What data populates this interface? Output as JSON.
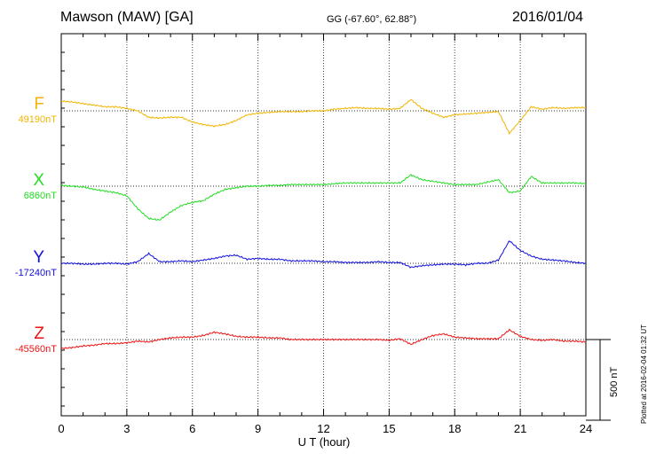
{
  "header": {
    "station": "Mawson (MAW)  [GA]",
    "coords": "GG (-67.60°,  62.88°)",
    "date": "2016/01/04"
  },
  "colors": {
    "F": "#f2b400",
    "X": "#22dd22",
    "Y": "#1010dd",
    "Z": "#ee1111"
  },
  "chart_data": {
    "type": "line",
    "xlabel": "U T (hour)",
    "xlim": [
      0,
      24
    ],
    "xticks": [
      0,
      3,
      6,
      9,
      12,
      15,
      18,
      21,
      24
    ],
    "xtick_labels": [
      "0",
      "3",
      "6",
      "9",
      "12",
      "15",
      "18",
      "21",
      "24"
    ],
    "grid": "vertical dotted at 3-hour intervals; dotted baseline per channel",
    "y_unit": "nT",
    "y_units_per_channel_span": 500,
    "scale_label": "500 nT",
    "plotted_note": "Plotted at 2016-02-04 01:32 UT",
    "x": [
      0,
      0.5,
      1,
      1.5,
      2,
      2.5,
      3,
      3.5,
      4,
      4.5,
      5,
      5.5,
      6,
      6.5,
      7,
      7.5,
      8,
      8.5,
      9,
      9.5,
      10,
      10.5,
      11,
      11.5,
      12,
      12.5,
      13,
      13.5,
      14,
      14.5,
      15,
      15.5,
      16,
      16.5,
      17,
      17.5,
      18,
      18.5,
      19,
      19.5,
      20,
      20.5,
      21,
      21.5,
      22,
      22.5,
      23,
      23.5,
      24
    ],
    "series": [
      {
        "name": "F",
        "baseline_label": "49190nT",
        "baseline": 49190,
        "values": [
          49250,
          49245,
          49235,
          49225,
          49215,
          49215,
          49205,
          49190,
          49150,
          49145,
          49150,
          49150,
          49120,
          49105,
          49095,
          49105,
          49130,
          49165,
          49175,
          49180,
          49185,
          49185,
          49185,
          49190,
          49190,
          49200,
          49205,
          49210,
          49205,
          49205,
          49200,
          49205,
          49260,
          49205,
          49175,
          49150,
          49165,
          49170,
          49175,
          49180,
          49185,
          49050,
          49130,
          49215,
          49200,
          49210,
          49205,
          49210,
          49210
        ]
      },
      {
        "name": "X",
        "baseline_label": "6860nT",
        "baseline": 6860,
        "values": [
          6865,
          6860,
          6855,
          6840,
          6830,
          6820,
          6800,
          6720,
          6660,
          6650,
          6700,
          6740,
          6760,
          6770,
          6810,
          6840,
          6850,
          6860,
          6860,
          6865,
          6865,
          6870,
          6870,
          6870,
          6870,
          6875,
          6880,
          6880,
          6880,
          6880,
          6880,
          6880,
          6930,
          6900,
          6890,
          6880,
          6870,
          6870,
          6870,
          6885,
          6900,
          6820,
          6830,
          6920,
          6880,
          6880,
          6880,
          6880,
          6875
        ]
      },
      {
        "name": "Y",
        "baseline_label": "-17240nT",
        "baseline": -17240,
        "values": [
          -17240,
          -17240,
          -17245,
          -17245,
          -17240,
          -17240,
          -17245,
          -17230,
          -17180,
          -17230,
          -17230,
          -17225,
          -17230,
          -17220,
          -17210,
          -17195,
          -17190,
          -17215,
          -17210,
          -17215,
          -17215,
          -17225,
          -17225,
          -17225,
          -17230,
          -17230,
          -17235,
          -17235,
          -17235,
          -17230,
          -17235,
          -17235,
          -17265,
          -17255,
          -17250,
          -17245,
          -17245,
          -17250,
          -17240,
          -17240,
          -17220,
          -17100,
          -17160,
          -17195,
          -17215,
          -17220,
          -17225,
          -17235,
          -17240
        ]
      },
      {
        "name": "Z",
        "baseline_label": "-45560nT",
        "baseline": -45560,
        "values": [
          -45615,
          -45610,
          -45600,
          -45595,
          -45585,
          -45585,
          -45580,
          -45570,
          -45575,
          -45560,
          -45550,
          -45545,
          -45545,
          -45535,
          -45515,
          -45525,
          -45540,
          -45545,
          -45545,
          -45550,
          -45550,
          -45560,
          -45560,
          -45560,
          -45560,
          -45560,
          -45560,
          -45560,
          -45560,
          -45560,
          -45565,
          -45555,
          -45590,
          -45560,
          -45535,
          -45525,
          -45545,
          -45550,
          -45555,
          -45555,
          -45555,
          -45500,
          -45540,
          -45560,
          -45565,
          -45560,
          -45570,
          -45570,
          -45575
        ]
      }
    ]
  }
}
